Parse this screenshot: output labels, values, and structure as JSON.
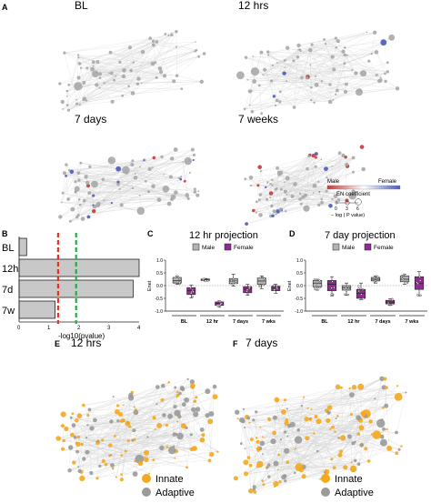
{
  "panels": {
    "A": {
      "letter": "A",
      "titles": [
        "BL",
        "12 hrs",
        "7 days",
        "7 weeks"
      ],
      "legend": {
        "male": "Male",
        "female": "Female",
        "coef": "EN coefficient",
        "ticks": [
          "0",
          "3",
          "6"
        ],
        "pval": "− log ( P value)"
      }
    },
    "B": {
      "letter": "B",
      "xlabel": "-log10(pvalue)",
      "xticks": [
        "0",
        "1",
        "2",
        "3",
        "4"
      ],
      "categories": [
        "BL",
        "12h",
        "7d",
        "7w"
      ],
      "values": [
        0.25,
        4.0,
        3.8,
        1.2
      ],
      "xlim": [
        0,
        4
      ],
      "red_line": 1.3,
      "green_line": 1.9
    },
    "C": {
      "letter": "C",
      "title": "12 hr projection",
      "ylabel": "Enet",
      "yticks": [
        "1.0",
        "0.5",
        "0.0",
        "-0.5",
        "-1.0"
      ],
      "ylim": [
        -1.0,
        1.0
      ],
      "legend": [
        "Male",
        "Female"
      ],
      "groups": [
        "BL",
        "12 hr",
        "7 days",
        "7 wks"
      ],
      "boxes": [
        {
          "q1": 0.1,
          "med": 0.2,
          "q3": 0.32,
          "lo": 0.05,
          "hi": 0.38,
          "sex": "m"
        },
        {
          "q1": -0.35,
          "med": -0.2,
          "q3": -0.08,
          "lo": -0.48,
          "hi": 0.02,
          "sex": "f"
        },
        {
          "q1": 0.2,
          "med": 0.23,
          "q3": 0.26,
          "lo": 0.18,
          "hi": 0.28,
          "sex": "m"
        },
        {
          "q1": -0.78,
          "med": -0.7,
          "q3": -0.64,
          "lo": -0.85,
          "hi": -0.6,
          "sex": "f"
        },
        {
          "q1": 0.08,
          "med": 0.18,
          "q3": 0.28,
          "lo": -0.02,
          "hi": 0.45,
          "sex": "m"
        },
        {
          "q1": -0.28,
          "med": -0.14,
          "q3": -0.04,
          "lo": -0.38,
          "hi": 0.05,
          "sex": "f"
        },
        {
          "q1": 0.05,
          "med": 0.18,
          "q3": 0.3,
          "lo": -0.12,
          "hi": 0.38,
          "sex": "m"
        },
        {
          "q1": -0.2,
          "med": -0.1,
          "q3": -0.02,
          "lo": -0.3,
          "hi": 0.06,
          "sex": "f"
        }
      ]
    },
    "D": {
      "letter": "D",
      "title": "7 day projection",
      "ylabel": "Enet",
      "yticks": [
        "1.0",
        "0.5",
        "0.0",
        "-0.5",
        "-1.0"
      ],
      "ylim": [
        -1.0,
        1.0
      ],
      "legend": [
        "Male",
        "Female"
      ],
      "groups": [
        "BL",
        "12 hr",
        "7 days",
        "7 wks"
      ],
      "boxes": [
        {
          "q1": -0.05,
          "med": 0.1,
          "q3": 0.2,
          "lo": -0.18,
          "hi": 0.25,
          "sex": "m"
        },
        {
          "q1": -0.2,
          "med": 0.05,
          "q3": 0.2,
          "lo": -0.4,
          "hi": 0.35,
          "sex": "f"
        },
        {
          "q1": -0.18,
          "med": -0.08,
          "q3": 0.0,
          "lo": -0.38,
          "hi": 0.1,
          "sex": "m"
        },
        {
          "q1": -0.5,
          "med": -0.3,
          "q3": -0.15,
          "lo": -0.55,
          "hi": 0.1,
          "sex": "f"
        },
        {
          "q1": 0.18,
          "med": 0.25,
          "q3": 0.32,
          "lo": 0.1,
          "hi": 0.38,
          "sex": "m"
        },
        {
          "q1": -0.72,
          "med": -0.65,
          "q3": -0.58,
          "lo": -0.78,
          "hi": -0.52,
          "sex": "f"
        },
        {
          "q1": 0.15,
          "med": 0.25,
          "q3": 0.38,
          "lo": 0.05,
          "hi": 0.45,
          "sex": "m"
        },
        {
          "q1": -0.15,
          "med": 0.08,
          "q3": 0.35,
          "lo": -0.4,
          "hi": 0.55,
          "sex": "f"
        }
      ]
    },
    "E": {
      "letter": "E",
      "title": "12 hrs",
      "legend": [
        "Innate",
        "Adaptive"
      ]
    },
    "F": {
      "letter": "F",
      "title": "7 days",
      "legend": [
        "Innate",
        "Adaptive"
      ]
    }
  },
  "colors": {
    "male": "#c33a3a",
    "female": "#4a5bb8",
    "grey_node": "#a8a8a8",
    "edge": "#d2d2d2",
    "bar_fill": "#c8c8c8",
    "red_dash": "#e0322a",
    "green_dash": "#2ea84a",
    "box_male": "#b3b3b3",
    "box_female": "#8e2d8f",
    "innate": "#f4a81d",
    "adaptive": "#9a9a9a"
  }
}
